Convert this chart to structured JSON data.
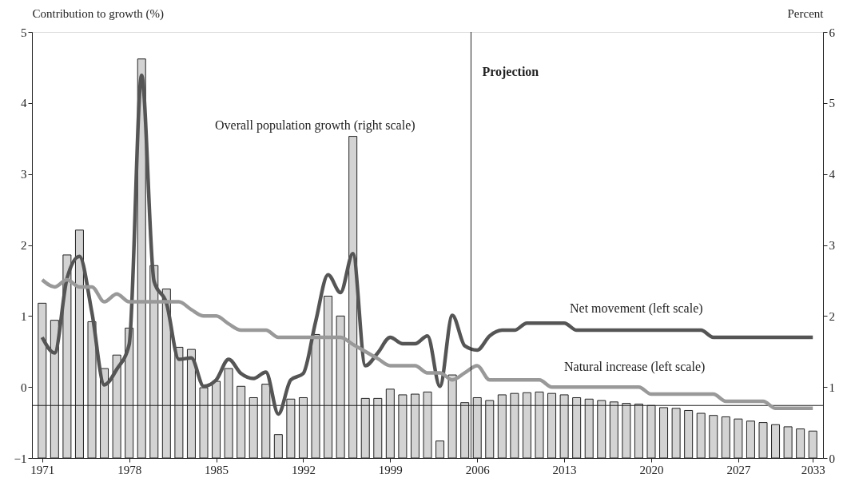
{
  "chart_data": {
    "type": "bar",
    "x": [
      1971,
      1972,
      1973,
      1974,
      1975,
      1976,
      1977,
      1978,
      1979,
      1980,
      1981,
      1982,
      1983,
      1984,
      1985,
      1986,
      1987,
      1988,
      1989,
      1990,
      1991,
      1992,
      1993,
      1994,
      1995,
      1996,
      1997,
      1998,
      1999,
      2000,
      2001,
      2002,
      2003,
      2004,
      2005,
      2006,
      2007,
      2008,
      2009,
      2010,
      2011,
      2012,
      2013,
      2014,
      2015,
      2016,
      2017,
      2018,
      2019,
      2020,
      2021,
      2022,
      2023,
      2024,
      2025,
      2026,
      2027,
      2028,
      2029,
      2030,
      2031,
      2032,
      2033
    ],
    "series": [
      {
        "name": "Overall population growth (right scale)",
        "axis": "y2",
        "color": "#d3d3d3",
        "values": [
          2.18,
          1.94,
          2.86,
          3.21,
          1.92,
          1.26,
          1.45,
          1.83,
          5.62,
          2.71,
          2.38,
          1.56,
          1.53,
          0.99,
          1.08,
          1.26,
          1.01,
          0.85,
          1.04,
          0.33,
          0.83,
          0.85,
          1.74,
          2.28,
          2.0,
          4.53,
          0.84,
          0.84,
          0.97,
          0.89,
          0.9,
          0.93,
          0.24,
          1.17,
          0.78,
          0.85,
          0.81,
          0.89,
          0.91,
          0.92,
          0.93,
          0.91,
          0.89,
          0.85,
          0.83,
          0.81,
          0.79,
          0.77,
          0.76,
          0.74,
          0.71,
          0.7,
          0.67,
          0.63,
          0.6,
          0.58,
          0.55,
          0.52,
          0.5,
          0.47,
          0.44,
          0.41,
          0.38
        ]
      },
      {
        "name": "Net movement (left scale)",
        "type": "line",
        "color": "#555555",
        "values": [
          0.7,
          0.48,
          1.53,
          1.84,
          1.05,
          0.03,
          0.25,
          0.6,
          4.39,
          1.49,
          1.18,
          0.39,
          0.41,
          0.01,
          0.1,
          0.39,
          0.19,
          0.12,
          0.21,
          -0.38,
          0.1,
          0.19,
          0.92,
          1.58,
          1.33,
          1.88,
          0.3,
          0.48,
          0.7,
          0.61,
          0.61,
          0.72,
          0.01,
          1.01,
          0.58,
          0.52,
          0.72,
          0.8,
          0.8,
          0.9,
          0.9,
          0.9,
          0.9,
          0.8,
          0.8,
          0.8,
          0.8,
          0.8,
          0.8,
          0.8,
          0.8,
          0.8,
          0.8,
          0.8,
          0.7,
          0.7,
          0.7,
          0.7,
          0.7,
          0.7,
          0.7,
          0.7,
          0.7
        ]
      },
      {
        "name": "Natural increase (left scale)",
        "type": "line",
        "color": "#999999",
        "values": [
          1.51,
          1.41,
          1.51,
          1.41,
          1.41,
          1.2,
          1.31,
          1.2,
          1.2,
          1.2,
          1.2,
          1.2,
          1.09,
          1.0,
          1.0,
          0.89,
          0.8,
          0.8,
          0.8,
          0.7,
          0.7,
          0.7,
          0.7,
          0.7,
          0.7,
          0.6,
          0.5,
          0.4,
          0.3,
          0.3,
          0.3,
          0.2,
          0.2,
          0.1,
          0.2,
          0.3,
          0.1,
          0.1,
          0.1,
          0.1,
          0.1,
          0.0,
          0.0,
          0.0,
          0.0,
          0.0,
          0.0,
          0.0,
          0.0,
          -0.1,
          -0.1,
          -0.1,
          -0.1,
          -0.1,
          -0.1,
          -0.2,
          -0.2,
          -0.2,
          -0.2,
          -0.3,
          -0.3,
          -0.3,
          -0.3
        ]
      }
    ],
    "ylabel": "Contribution to growth (%)",
    "y2label": "Percent",
    "xlim": [
      1970.5,
      2033.5
    ],
    "xticks": [
      1971,
      1978,
      1985,
      1992,
      1999,
      2006,
      2013,
      2020,
      2027,
      2033
    ],
    "ylim": [
      -1,
      5
    ],
    "yticks": [
      -1,
      0,
      1,
      2,
      3,
      4,
      5
    ],
    "y2lim": [
      0,
      6
    ],
    "y2ticks": [
      0,
      1,
      2,
      3,
      4,
      5,
      6
    ],
    "ref_lines": [
      {
        "axis": "x",
        "value": 2005.5,
        "label": "Projection"
      },
      {
        "axis": "y2",
        "value": 0.74
      }
    ],
    "grid": false
  }
}
